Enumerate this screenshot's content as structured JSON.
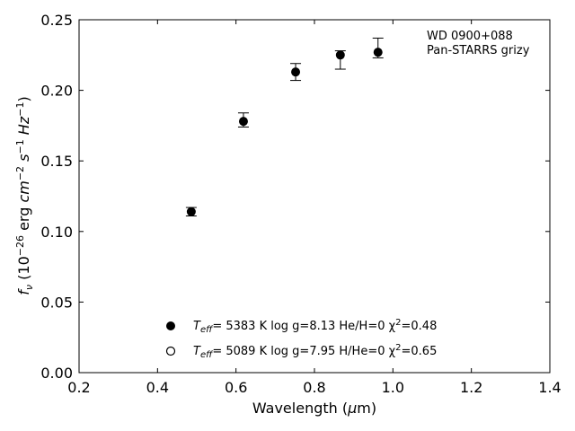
{
  "chart_data": {
    "type": "scatter",
    "xlabel": "Wavelength (μm)",
    "ylabel": "f_ν (10^−26 erg cm^−2 s^−1 Hz^−1)",
    "xlim": [
      0.2,
      1.4
    ],
    "ylim": [
      0.0,
      0.25
    ],
    "xticks": [
      "0.2",
      "0.4",
      "0.6",
      "0.8",
      "1.0",
      "1.2",
      "1.4"
    ],
    "yticks": [
      "0.00",
      "0.05",
      "0.10",
      "0.15",
      "0.20",
      "0.25"
    ],
    "grid": false,
    "annotation": [
      "WD 0900+088",
      "Pan-STARRS grizy"
    ],
    "series": [
      {
        "name": "Teff= 5383 K log g=8.13 He/H=0 χ2=0.48",
        "marker": "filled-circle",
        "points": [
          {
            "x": 0.486,
            "y": 0.114,
            "yerr_low": 0.003,
            "yerr_high": 0.003
          },
          {
            "x": 0.619,
            "y": 0.178,
            "yerr_low": 0.004,
            "yerr_high": 0.006
          },
          {
            "x": 0.752,
            "y": 0.213,
            "yerr_low": 0.006,
            "yerr_high": 0.006
          },
          {
            "x": 0.866,
            "y": 0.225,
            "yerr_low": 0.01,
            "yerr_high": 0.003
          },
          {
            "x": 0.962,
            "y": 0.227,
            "yerr_low": 0.004,
            "yerr_high": 0.01
          }
        ]
      },
      {
        "name": "Teff= 5089 K log g=7.95 H/He=0 χ2=0.65",
        "marker": "open-circle",
        "points": []
      }
    ],
    "legend": [
      {
        "marker": "filled-circle",
        "teff_label": "T",
        "teff_sub": "eff",
        "text": "=  5383 K  log g=8.13  He/H=0  χ",
        "chi_sup": "2",
        "chi_val": "=0.48"
      },
      {
        "marker": "open-circle",
        "teff_label": "T",
        "teff_sub": "eff",
        "text": "=  5089 K  log g=7.95  H/He=0  χ",
        "chi_sup": "2",
        "chi_val": "=0.65"
      }
    ],
    "colors": {
      "marker": "#000000",
      "axes": "#000000",
      "background": "#ffffff"
    }
  }
}
